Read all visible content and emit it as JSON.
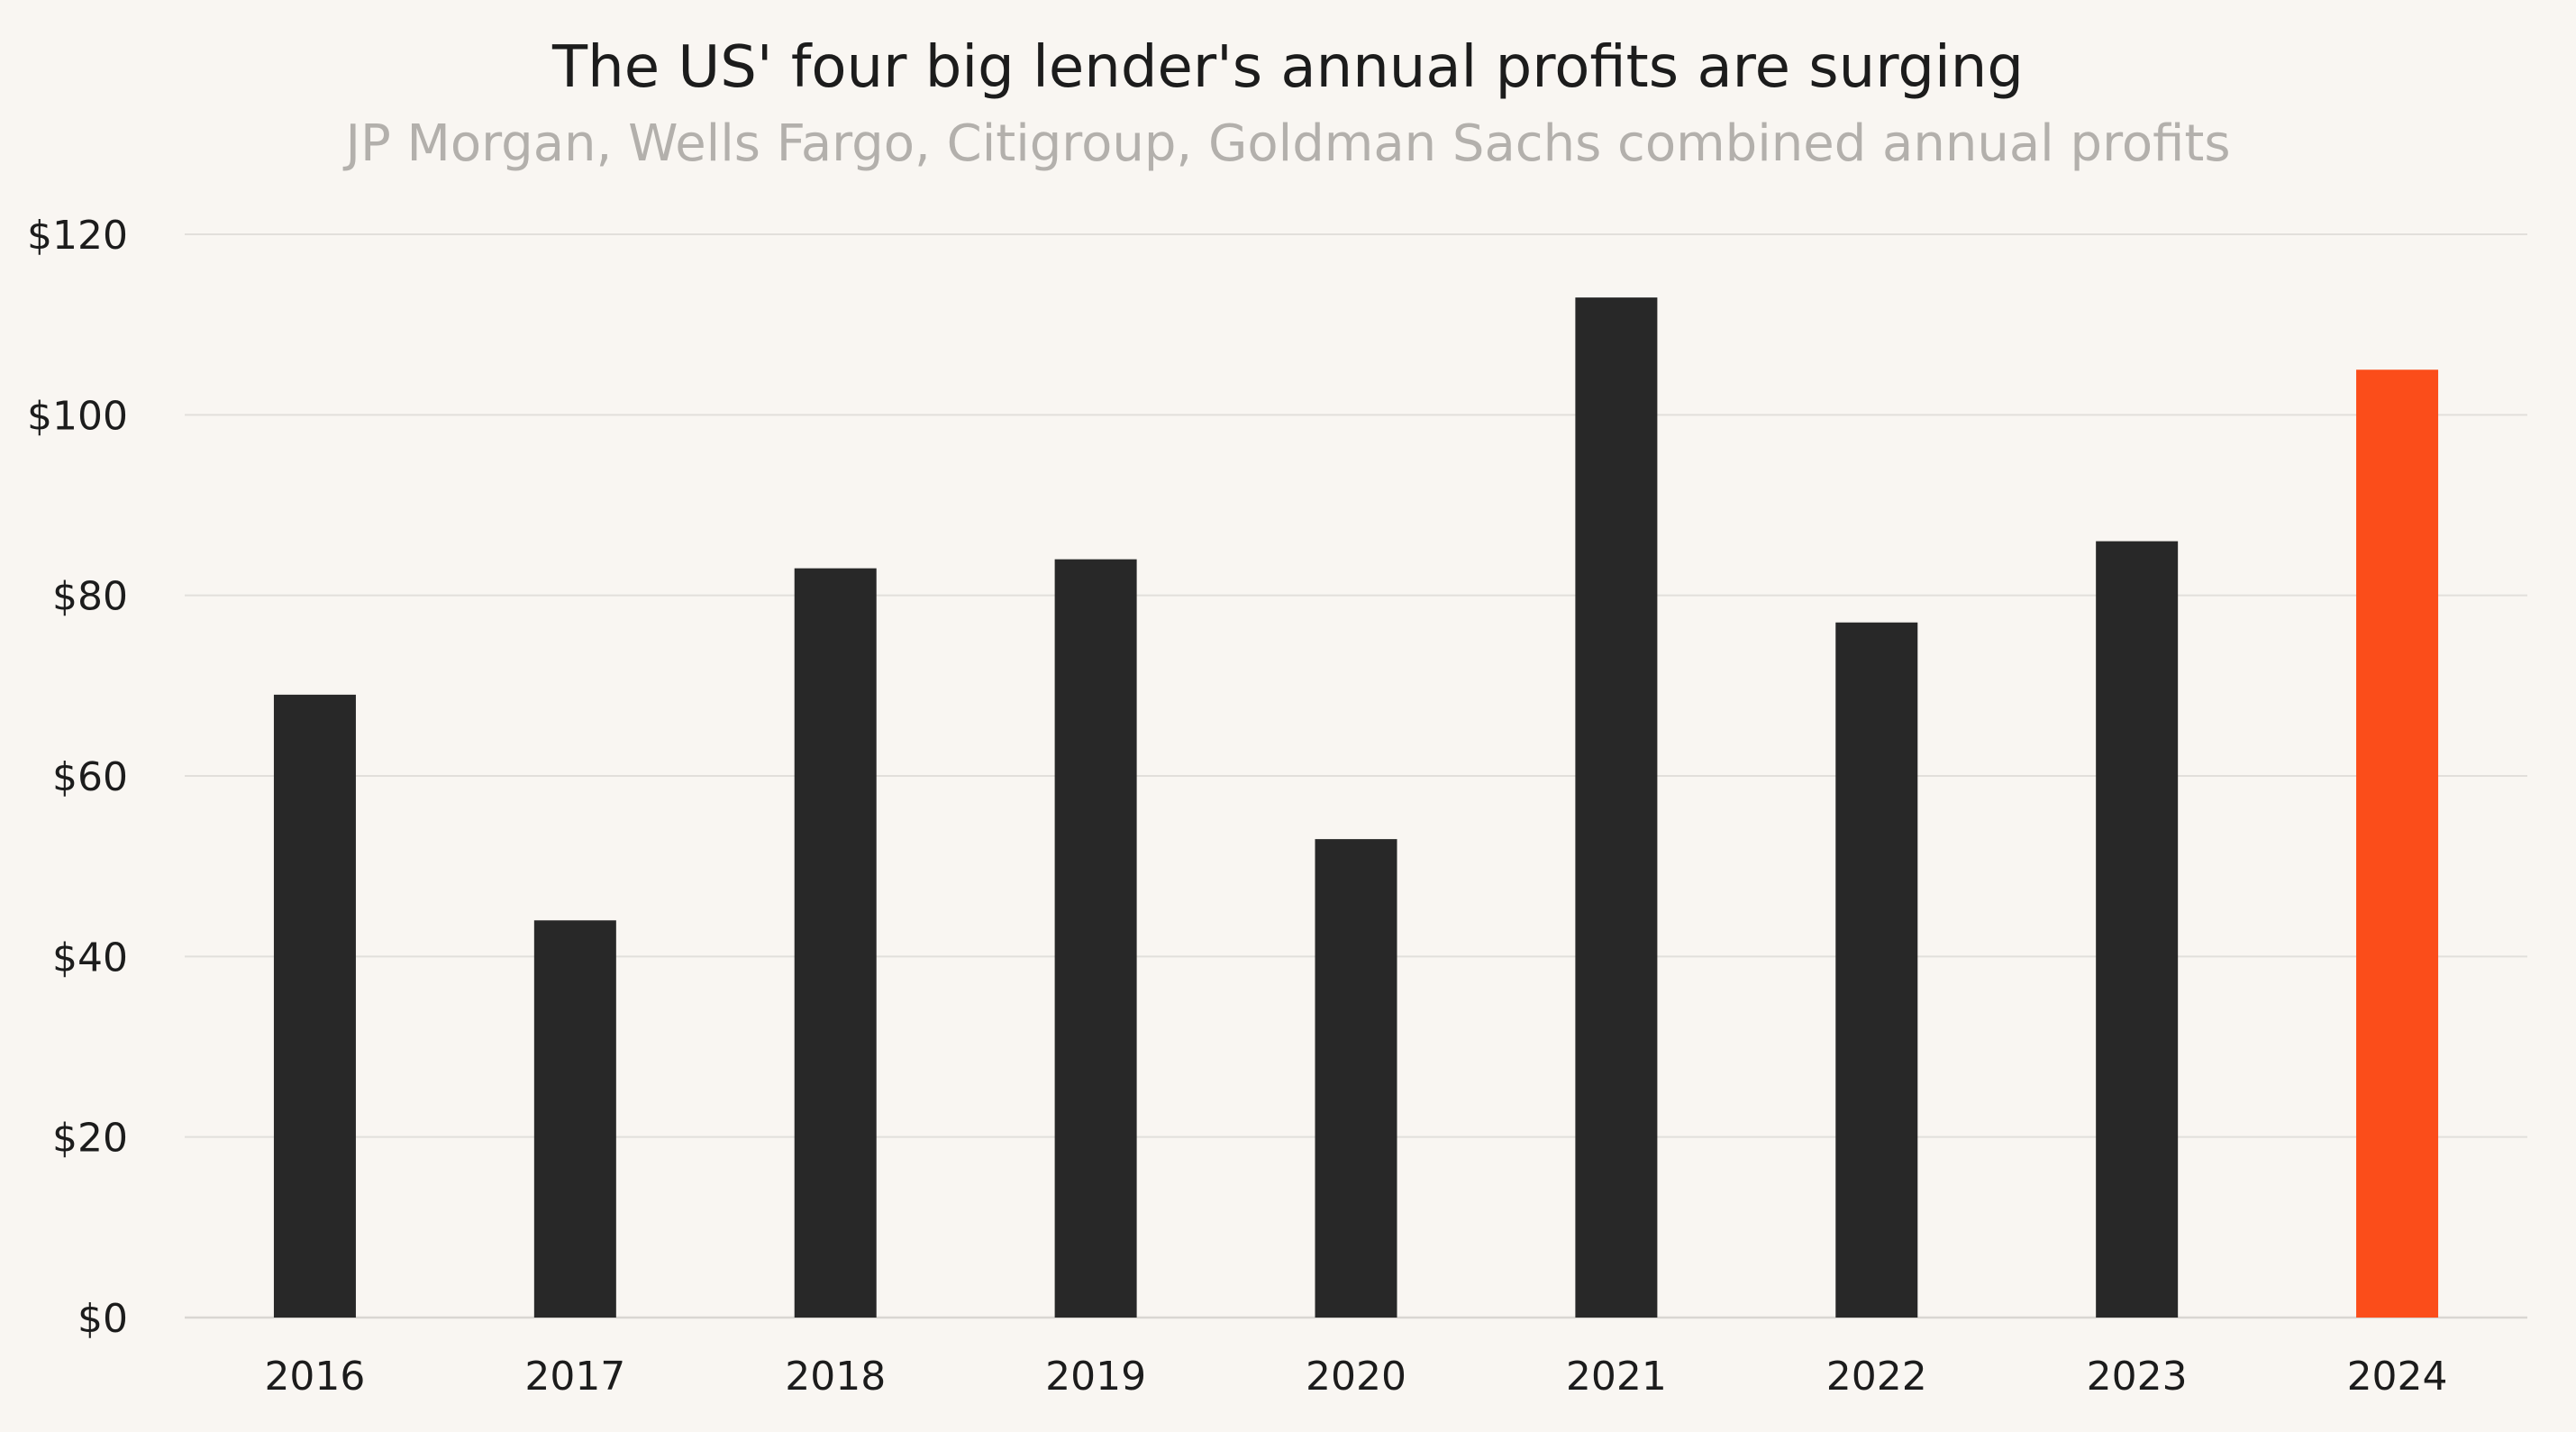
{
  "chart_data": {
    "type": "bar",
    "title": "The US' four big lender's annual profits are surging",
    "subtitle": "JP Morgan, Wells Fargo, Citigroup, Goldman Sachs combined annual profits",
    "xlabel": "",
    "ylabel": "",
    "categories": [
      "2016",
      "2017",
      "2018",
      "2019",
      "2020",
      "2021",
      "2022",
      "2023",
      "2024"
    ],
    "values": [
      69,
      44,
      83,
      84,
      53,
      113,
      77,
      86,
      105
    ],
    "ylim": [
      0,
      120
    ],
    "yticks": [
      0,
      20,
      40,
      60,
      80,
      100,
      120
    ],
    "ytick_prefix": "$",
    "grid": true,
    "legend": "none",
    "bar_color": "#282828",
    "highlight_index": 8,
    "highlight_color": "#fb4d1a"
  }
}
